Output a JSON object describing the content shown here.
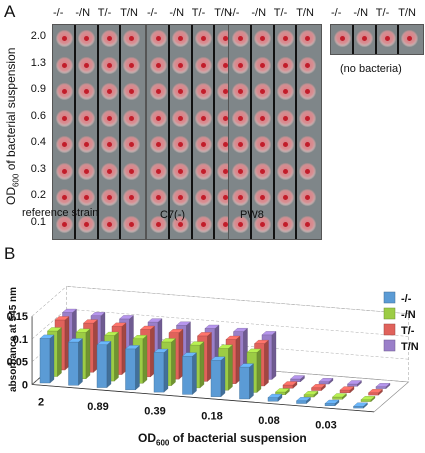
{
  "panel_a": {
    "letter": "A",
    "y_label_prefix": "OD",
    "y_label_sub": "600",
    "y_label_suffix": " of bacterial suspension",
    "od_labels": [
      "2.0",
      "1.3",
      "0.9",
      "0.6",
      "0.4",
      "0.3",
      "0.2",
      "0.1"
    ],
    "groups": [
      {
        "name": "reference strain",
        "headers": [
          "-/-",
          "-/N",
          "T/-",
          "T/N"
        ]
      },
      {
        "name": "C7(-)",
        "headers": [
          "-/-",
          "-/N",
          "T/-",
          "T/N"
        ]
      },
      {
        "name": "PW8",
        "headers": [
          "-/-",
          "-/N",
          "T/-",
          "T/N"
        ]
      },
      {
        "name": "(no bacteria)",
        "headers": [
          "-/-",
          "-/N",
          "T/-",
          "T/N"
        ]
      }
    ]
  },
  "panel_b": {
    "letter": "B",
    "chart_data": {
      "type": "bar",
      "title": "",
      "xlabel_prefix": "OD",
      "xlabel_sub": "600",
      "xlabel_suffix": " of bacterial suspension",
      "ylabel": "absorbance at 545 nm",
      "yticks": [
        "0",
        "0.05",
        "0.1",
        "0.15"
      ],
      "ylim": [
        0,
        0.15
      ],
      "categories": [
        "2",
        "1.3",
        "0.89",
        "0.6",
        "0.39",
        "0.26",
        "0.18",
        "0.12",
        "0.08",
        "0.05",
        "0.03",
        "0.02"
      ],
      "category_labels_shown": [
        "2",
        "0.89",
        "0.39",
        "0.18",
        "0.08",
        "0.03"
      ],
      "legend_position": "right",
      "series": [
        {
          "name": "-/-",
          "color": "#5b9bd5",
          "values": [
            0.098,
            0.095,
            0.094,
            0.09,
            0.087,
            0.084,
            0.08,
            0.07,
            0.008,
            0.006,
            0.005,
            0.004
          ]
        },
        {
          "name": "-/N",
          "color": "#9ccc45",
          "values": [
            0.1,
            0.102,
            0.1,
            0.098,
            0.096,
            0.094,
            0.092,
            0.088,
            0.006,
            0.005,
            0.005,
            0.004
          ]
        },
        {
          "name": "T/-",
          "color": "#e0625b",
          "values": [
            0.11,
            0.108,
            0.106,
            0.104,
            0.102,
            0.1,
            0.097,
            0.093,
            0.007,
            0.006,
            0.006,
            0.005
          ]
        },
        {
          "name": "T/N",
          "color": "#9a7fc9",
          "values": [
            0.112,
            0.11,
            0.108,
            0.106,
            0.104,
            0.102,
            0.1,
            0.098,
            0.006,
            0.005,
            0.005,
            0.004
          ]
        }
      ]
    }
  }
}
